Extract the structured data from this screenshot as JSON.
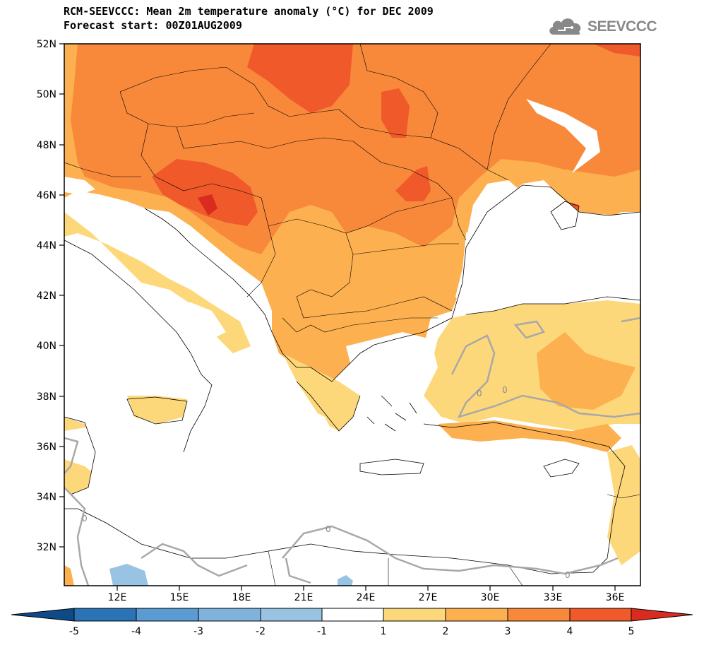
{
  "header": {
    "title_line1": "RCM-SEEVCCC: Mean 2m temperature anomaly (°C) for DEC 2009",
    "title_line2": "Forecast start: 00Z01AUG2009"
  },
  "logo": {
    "text": "SEEVCCC",
    "icon": "cloud-icon"
  },
  "map": {
    "lat_ticks": [
      "52N",
      "50N",
      "48N",
      "46N",
      "44N",
      "42N",
      "40N",
      "38N",
      "36N",
      "34N",
      "32N"
    ],
    "lon_ticks": [
      "12E",
      "15E",
      "18E",
      "21E",
      "24E",
      "27E",
      "30E",
      "33E",
      "36E"
    ],
    "contour_label": "0"
  },
  "legend": {
    "ticks": [
      "-5",
      "-4",
      "-3",
      "-2",
      "-1",
      "1",
      "2",
      "3",
      "4",
      "5"
    ],
    "colors": [
      "#0d4a86",
      "#2a73b5",
      "#5a9bd2",
      "#99c3e3",
      "#ffffff",
      "#fdd87a",
      "#fcb04f",
      "#f8893a",
      "#f05a2a",
      "#d92b1f"
    ]
  },
  "colors": {
    "anomaly_1_2": "#fdd87a",
    "anomaly_2_3": "#fcb04f",
    "anomaly_3_4": "#f8893a",
    "anomaly_4_5": "#f05a2a",
    "anomaly_5_plus": "#d92b1f",
    "anomaly_neg": "#99c3e3",
    "zero_contour": "#a8a8a8"
  }
}
